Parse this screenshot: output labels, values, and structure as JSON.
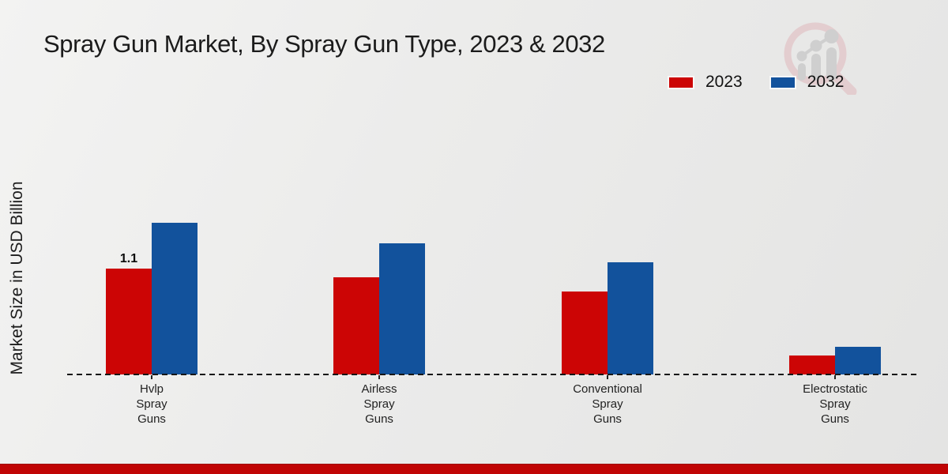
{
  "chart_data": {
    "type": "bar",
    "title": "Spray Gun Market, By Spray Gun Type, 2023 & 2032",
    "ylabel": "Market Size in USD Billion",
    "xlabel": "",
    "categories": [
      "Hvlp\nSpray\nGuns",
      "Airless\nSpray\nGuns",
      "Conventional\nSpray\nGuns",
      "Electrostatic\nSpray\nGuns"
    ],
    "series": [
      {
        "name": "2023",
        "color": "#cc0505",
        "values": [
          1.1,
          1.01,
          0.86,
          0.2
        ]
      },
      {
        "name": "2032",
        "color": "#12529c",
        "values": [
          1.57,
          1.36,
          1.16,
          0.29
        ]
      }
    ],
    "value_labels": [
      {
        "series_index": 0,
        "category_index": 0,
        "text": "1.1"
      }
    ],
    "ylim": [
      0,
      1.8
    ],
    "grid": false,
    "legend_position": "top-right",
    "x_axis_style": "dashed"
  },
  "watermark_icon": "magnifier-growth-chart-logo",
  "footer": {
    "bar_color": "#c00404"
  }
}
